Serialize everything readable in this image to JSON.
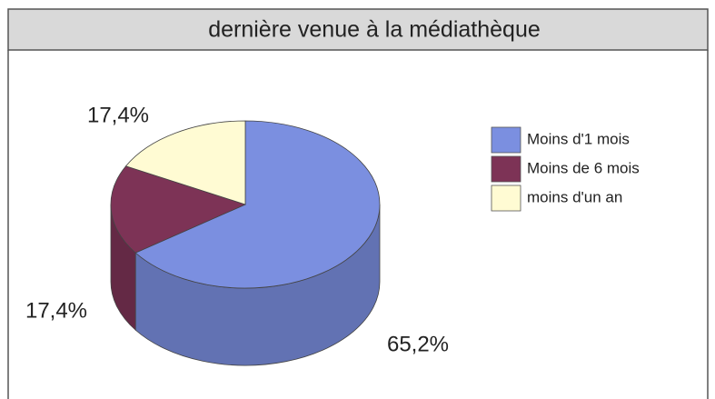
{
  "chart_data": {
    "type": "pie",
    "title": "dernière venue à la médiathèque",
    "categories": [
      "Moins d'1 mois",
      "Moins de 6 mois",
      "moins d'un an"
    ],
    "values": [
      65.2,
      17.4,
      17.4
    ],
    "value_labels": [
      "65,2%",
      "17,4%",
      "17,4%"
    ],
    "colors": [
      "#7b8fe0",
      "#7d3356",
      "#fffbd3"
    ],
    "legend": "right"
  }
}
